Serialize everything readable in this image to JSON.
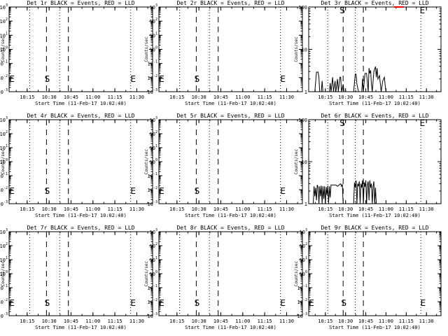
{
  "chart_data": [
    {
      "type": "line",
      "title": "Det 1r BLACK = Events, RED = LLD",
      "xlabel": "Start Time (11-Feb-17 10:02:40)",
      "ylabel": "Counts/sec",
      "yscale": "log",
      "ylim": [
        0.001,
        1000
      ],
      "yticks": [
        "10^-3",
        "10^-2",
        "10^-1",
        "10^0",
        "10^1",
        "10^2",
        "10^3"
      ],
      "xticks": [
        "10:15",
        "10:30",
        "10:45",
        "11:00",
        "11:15",
        "11:30"
      ],
      "markers": {
        "start": "S",
        "end": "E",
        "left": "E"
      },
      "series": []
    },
    {
      "type": "line",
      "title": "Det 2r BLACK = Events, RED = LLD",
      "xlabel": "Start Time (11-Feb-17 10:02:40)",
      "ylabel": "Counts/sec",
      "yscale": "log",
      "ylim": [
        0.001,
        1000
      ],
      "yticks": [
        "10^-3",
        "10^-2",
        "10^-1",
        "10^0",
        "10^1",
        "10^2",
        "10^3"
      ],
      "xticks": [
        "10:15",
        "10:30",
        "10:45",
        "11:00",
        "11:15",
        "11:30"
      ],
      "markers": {
        "start": "S",
        "end": "E",
        "left": "E"
      },
      "series": []
    },
    {
      "type": "line",
      "title": "Det 3r BLACK = Events, RED = LLD",
      "xlabel": "Start Time (11-Feb-17 10:02:40)",
      "ylabel": "Counts/sec",
      "yscale": "log",
      "ylim": [
        1,
        100
      ],
      "yticks": [
        "1",
        "10",
        "100"
      ],
      "xticks": [
        "10:15",
        "10:30",
        "10:45",
        "11:00",
        "11:15",
        "11:30"
      ],
      "markers": {
        "start": "S",
        "end": "E",
        "left": ""
      },
      "series": [
        {
          "color": "#000000",
          "values": [
            [
              10.1,
              1
            ],
            [
              10.12,
              1
            ],
            [
              10.14,
              2.9
            ],
            [
              10.16,
              2.9
            ],
            [
              10.17,
              2.2
            ],
            [
              10.18,
              1
            ],
            [
              10.2,
              1
            ],
            [
              10.21,
              1.8
            ],
            [
              10.22,
              1
            ],
            [
              10.24,
              1
            ],
            [
              10.3,
              1
            ],
            [
              10.31,
              1.6
            ],
            [
              10.32,
              1
            ],
            [
              10.34,
              2.2
            ],
            [
              10.35,
              1
            ],
            [
              10.37,
              1.8
            ],
            [
              10.38,
              1
            ],
            [
              10.4,
              2.0
            ],
            [
              10.41,
              1
            ],
            [
              10.43,
              2.2
            ],
            [
              10.44,
              2.2
            ],
            [
              10.45,
              1
            ],
            [
              10.47,
              1.5
            ],
            [
              10.48,
              1
            ],
            [
              10.6,
              1
            ],
            [
              10.62,
              2.6
            ],
            [
              10.63,
              2.6
            ],
            [
              10.64,
              1.5
            ],
            [
              10.66,
              1
            ],
            [
              10.7,
              1
            ],
            [
              10.71,
              2.0
            ],
            [
              10.72,
              1
            ],
            [
              10.74,
              2.7
            ],
            [
              10.76,
              2.7
            ],
            [
              10.77,
              1.6
            ],
            [
              10.78,
              1
            ],
            [
              10.79,
              3.6
            ],
            [
              10.8,
              2.7
            ],
            [
              10.81,
              3.2
            ],
            [
              10.82,
              1.5
            ],
            [
              10.83,
              1
            ],
            [
              10.85,
              3.0
            ],
            [
              10.87,
              3.9
            ],
            [
              10.88,
              2.2
            ],
            [
              10.89,
              3.6
            ],
            [
              10.9,
              2.0
            ],
            [
              10.92,
              2.4
            ],
            [
              10.93,
              1.5
            ],
            [
              10.94,
              1
            ],
            [
              10.96,
              1.8
            ],
            [
              10.98,
              2.2
            ],
            [
              10.99,
              1.4
            ],
            [
              11.0,
              1
            ]
          ]
        },
        {
          "color": "#ff0000",
          "values": [
            [
              11.1,
              100
            ],
            [
              11.22,
              100
            ]
          ]
        }
      ]
    },
    {
      "type": "line",
      "title": "Det 4r BLACK = Events, RED = LLD",
      "xlabel": "Start Time (11-Feb-17 10:02:40)",
      "ylabel": "Counts/sec",
      "yscale": "log",
      "ylim": [
        0.001,
        1000
      ],
      "yticks": [
        "10^-3",
        "10^-2",
        "10^-1",
        "10^0",
        "10^1",
        "10^2",
        "10^3"
      ],
      "xticks": [
        "10:15",
        "10:30",
        "10:45",
        "11:00",
        "11:15",
        "11:30"
      ],
      "markers": {
        "start": "S",
        "end": "E",
        "left": "E"
      },
      "series": []
    },
    {
      "type": "line",
      "title": "Det 5r BLACK = Events, RED = LLD",
      "xlabel": "Start Time (11-Feb-17 10:02:40)",
      "ylabel": "Counts/sec",
      "yscale": "log",
      "ylim": [
        0.001,
        1000
      ],
      "yticks": [
        "10^-3",
        "10^-2",
        "10^-1",
        "10^0",
        "10^1",
        "10^2",
        "10^3"
      ],
      "xticks": [
        "10:15",
        "10:30",
        "10:45",
        "11:00",
        "11:15",
        "11:30"
      ],
      "markers": {
        "start": "S",
        "end": "E",
        "left": "E"
      },
      "series": []
    },
    {
      "type": "line",
      "title": "Det 6r BLACK = Events, RED = LLD",
      "xlabel": "Start Time (11-Feb-17 10:02:40)",
      "ylabel": "Counts/sec",
      "yscale": "log",
      "ylim": [
        1,
        100
      ],
      "yticks": [
        "1",
        "10",
        "100"
      ],
      "xticks": [
        "10:15",
        "10:30",
        "10:45",
        "11:00",
        "11:15",
        "11:30"
      ],
      "markers": {
        "start": "S",
        "end": "E",
        "left": ""
      },
      "series": [
        {
          "color": "#000000",
          "values": [
            [
              10.1,
              1
            ],
            [
              10.11,
              2.6
            ],
            [
              10.12,
              1.5
            ],
            [
              10.13,
              2.4
            ],
            [
              10.14,
              1.2
            ],
            [
              10.15,
              2.8
            ],
            [
              10.16,
              2.5
            ],
            [
              10.17,
              1
            ],
            [
              10.18,
              2.6
            ],
            [
              10.19,
              1.5
            ],
            [
              10.2,
              2.7
            ],
            [
              10.21,
              1
            ],
            [
              10.22,
              2.6
            ],
            [
              10.23,
              1.3
            ],
            [
              10.24,
              2.6
            ],
            [
              10.25,
              1
            ],
            [
              10.26,
              2.5
            ],
            [
              10.27,
              1.6
            ],
            [
              10.28,
              2.7
            ],
            [
              10.29,
              1
            ],
            [
              10.3,
              2.6
            ],
            [
              10.31,
              1.4
            ],
            [
              10.32,
              2.8
            ],
            [
              10.34,
              2.8
            ],
            [
              10.36,
              2.8
            ],
            [
              10.38,
              2.8
            ],
            [
              10.4,
              2.6
            ],
            [
              10.42,
              2.8
            ],
            [
              10.44,
              3.0
            ],
            [
              10.45,
              2.6
            ],
            [
              10.46,
              2.9
            ],
            [
              10.47,
              1
            ],
            [
              10.6,
              1
            ],
            [
              10.61,
              3.2
            ],
            [
              10.62,
              2.4
            ],
            [
              10.63,
              3.6
            ],
            [
              10.64,
              1
            ],
            [
              10.65,
              3.0
            ],
            [
              10.66,
              2.6
            ],
            [
              10.67,
              3.4
            ],
            [
              10.68,
              1
            ],
            [
              10.69,
              3.0
            ],
            [
              10.7,
              2.4
            ],
            [
              10.71,
              3.6
            ],
            [
              10.72,
              1
            ],
            [
              10.73,
              3.2
            ],
            [
              10.74,
              2.5
            ],
            [
              10.75,
              3.6
            ],
            [
              10.76,
              1
            ],
            [
              10.77,
              2.8
            ],
            [
              10.78,
              3.4
            ],
            [
              10.79,
              1.2
            ],
            [
              10.8,
              3.6
            ],
            [
              10.81,
              2.4
            ],
            [
              10.82,
              3.0
            ],
            [
              10.83,
              1
            ],
            [
              10.84,
              2.6
            ],
            [
              10.85,
              3.4
            ],
            [
              10.86,
              1
            ],
            [
              10.87,
              2.4
            ],
            [
              10.88,
              1
            ]
          ]
        }
      ]
    },
    {
      "type": "line",
      "title": "Det 7r BLACK = Events, RED = LLD",
      "xlabel": "Start Time (11-Feb-17 10:02:40)",
      "ylabel": "Counts/sec",
      "yscale": "log",
      "ylim": [
        0.001,
        1000
      ],
      "yticks": [
        "10^-3",
        "10^-2",
        "10^-1",
        "10^0",
        "10^1",
        "10^2",
        "10^3"
      ],
      "xticks": [
        "10:15",
        "10:30",
        "10:45",
        "11:00",
        "11:15",
        "11:30"
      ],
      "markers": {
        "start": "S",
        "end": "E",
        "left": "E"
      },
      "series": []
    },
    {
      "type": "line",
      "title": "Det 8r BLACK = Events, RED = LLD",
      "xlabel": "Start Time (11-Feb-17 10:02:40)",
      "ylabel": "Counts/sec",
      "yscale": "log",
      "ylim": [
        0.001,
        1000
      ],
      "yticks": [
        "10^-3",
        "10^-2",
        "10^-1",
        "10^0",
        "10^1",
        "10^2",
        "10^3"
      ],
      "xticks": [
        "10:15",
        "10:30",
        "10:45",
        "11:00",
        "11:15",
        "11:30"
      ],
      "markers": {
        "start": "S",
        "end": "E",
        "left": "E"
      },
      "series": []
    },
    {
      "type": "line",
      "title": "Det 9r BLACK = Events, RED = LLD",
      "xlabel": "Start Time (11-Feb-17 10:02:40)",
      "ylabel": "Counts/sec",
      "yscale": "log",
      "ylim": [
        0.001,
        1000
      ],
      "yticks": [
        "10^-3",
        "10^-2",
        "10^-1",
        "10^0",
        "10^1",
        "10^2",
        "10^3"
      ],
      "xticks": [
        "10:15",
        "10:30",
        "10:45",
        "11:00",
        "11:15",
        "11:30"
      ],
      "markers": {
        "start": "S",
        "end": "E",
        "left": "E"
      },
      "series": []
    }
  ],
  "time_axis": {
    "xmin": 10.044,
    "xmax": 11.68,
    "dotted": [
      10.28,
      10.62,
      11.43
    ],
    "dashed": [
      10.47,
      10.72
    ],
    "tick_values": [
      10.25,
      10.5,
      10.75,
      11.0,
      11.25,
      11.5
    ]
  }
}
